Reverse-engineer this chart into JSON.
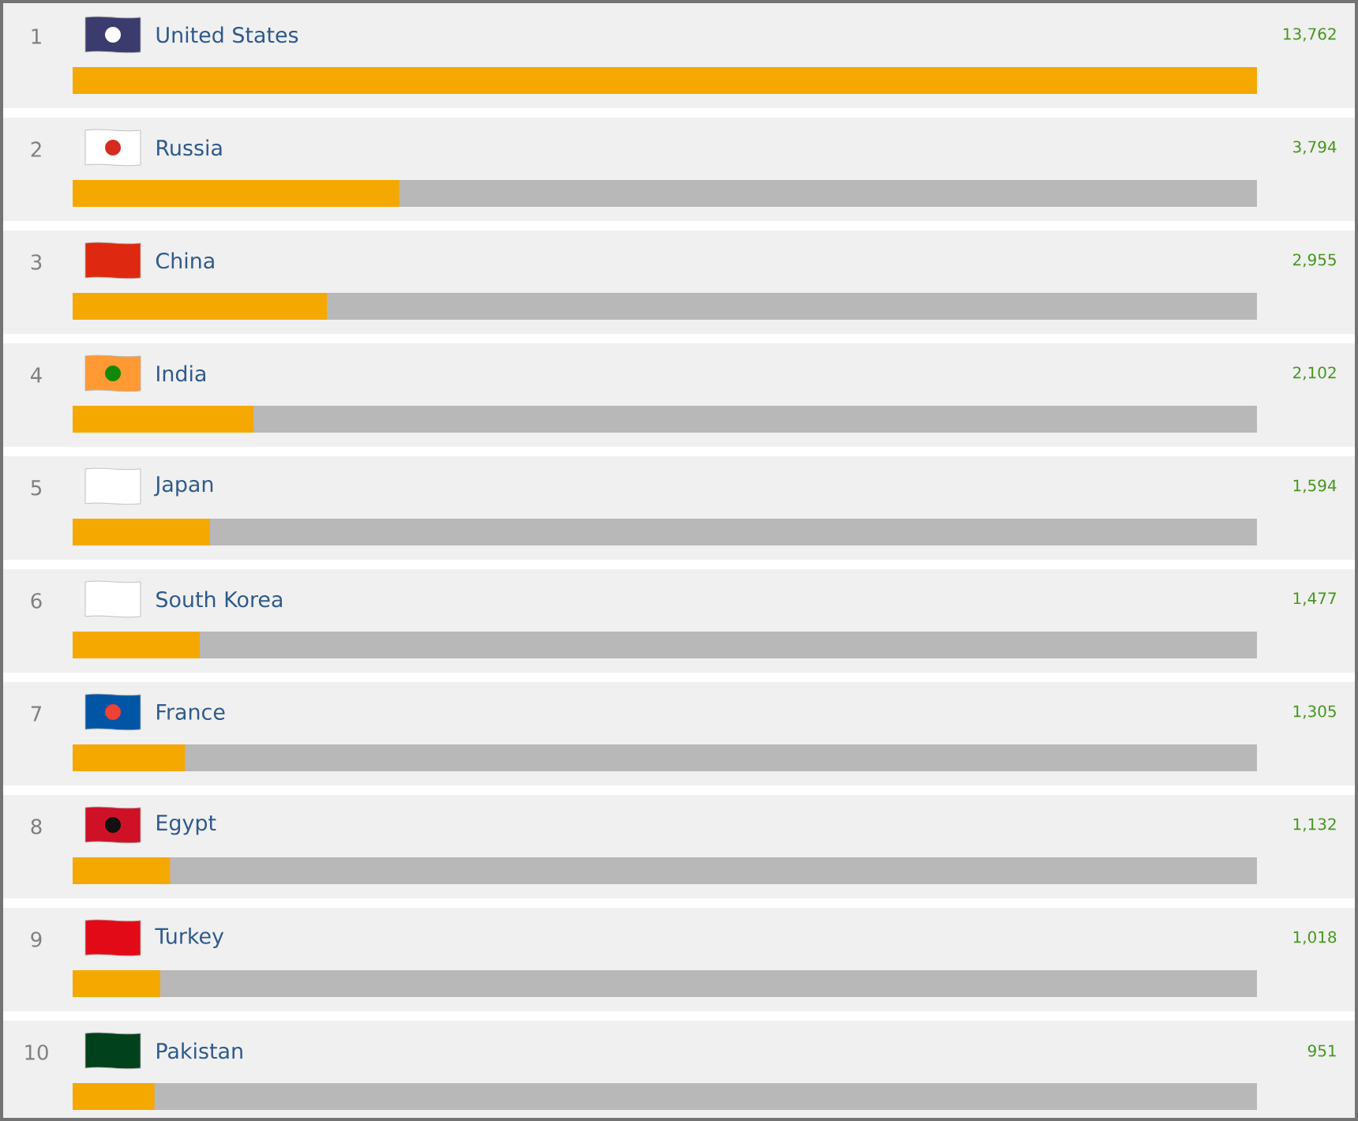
{
  "chart_data": {
    "type": "bar",
    "orientation": "horizontal",
    "categories": [
      "United States",
      "Russia",
      "China",
      "India",
      "Japan",
      "South Korea",
      "France",
      "Egypt",
      "Turkey",
      "Pakistan"
    ],
    "values": [
      13762,
      3794,
      2955,
      2102,
      1594,
      1477,
      1305,
      1132,
      1018,
      951
    ],
    "value_labels": [
      "13,762",
      "3,794",
      "2,955",
      "2,102",
      "1,594",
      "1,477",
      "1,305",
      "1,132",
      "1,018",
      "951"
    ],
    "color": "#f5a800",
    "xlim": [
      0,
      13762
    ],
    "tick_labels": false,
    "annotations": [
      "1",
      "2",
      "3",
      "4",
      "5",
      "6",
      "7",
      "8",
      "9",
      "10"
    ]
  }
}
